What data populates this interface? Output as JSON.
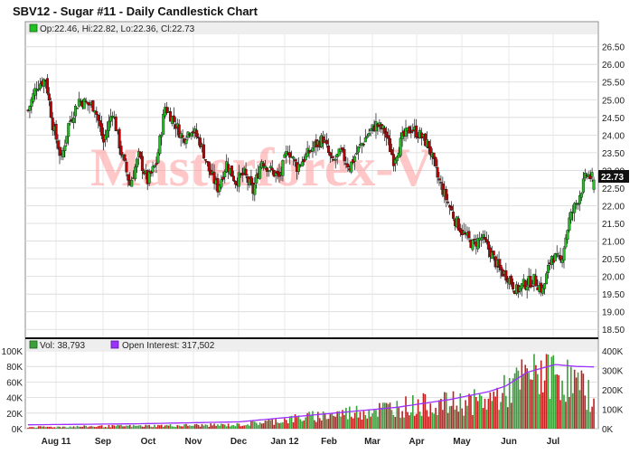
{
  "title": "SBV12 - Sugar #11 - Daily Candlestick Chart",
  "watermark": "Masterforex-V",
  "price_panel": {
    "ohlc_legend": "Op:22.46, Hi:22.82, Lo:22.36, Cl:22.73",
    "last_price_label": "22.73",
    "up_color": "#22c022",
    "down_color": "#c00000"
  },
  "volume_panel": {
    "vol_legend": "Vol: 38,793",
    "oi_legend": "Open Interest: 317,502",
    "vol_up_color": "#3aa03a",
    "vol_down_color": "#c02020",
    "oi_color": "#9b30ff"
  },
  "chart_data": [
    {
      "type": "candlestick",
      "title": "SBV12 - Sugar #11 - Daily Candlestick Chart",
      "ylim": [
        18.25,
        26.85
      ],
      "y_ticks": [
        "26.50",
        "26.00",
        "25.50",
        "25.00",
        "24.50",
        "24.00",
        "23.50",
        "23.00",
        "22.50",
        "22.00",
        "21.50",
        "21.00",
        "20.50",
        "20.00",
        "19.50",
        "19.00",
        "18.50"
      ],
      "x_ticks": [
        "Aug 11",
        "Sep",
        "Oct",
        "Nov",
        "Dec",
        "Jan 12",
        "Feb",
        "Mar",
        "Apr",
        "May",
        "Jun",
        "Jul"
      ],
      "grid": true,
      "approx_close_path": [
        [
          0,
          24.7
        ],
        [
          5,
          25.4
        ],
        [
          10,
          25.6
        ],
        [
          14,
          24.3
        ],
        [
          19,
          23.3
        ],
        [
          23,
          24.3
        ],
        [
          29,
          25.0
        ],
        [
          33,
          24.9
        ],
        [
          38,
          24.8
        ],
        [
          43,
          23.8
        ],
        [
          48,
          24.7
        ],
        [
          53,
          23.5
        ],
        [
          58,
          22.6
        ],
        [
          63,
          23.4
        ],
        [
          68,
          22.7
        ],
        [
          73,
          23.2
        ],
        [
          78,
          24.8
        ],
        [
          83,
          24.4
        ],
        [
          88,
          23.9
        ],
        [
          93,
          24.2
        ],
        [
          98,
          23.8
        ],
        [
          103,
          23.0
        ],
        [
          108,
          22.5
        ],
        [
          113,
          23.2
        ],
        [
          118,
          22.7
        ],
        [
          123,
          22.9
        ],
        [
          128,
          22.4
        ],
        [
          133,
          23.3
        ],
        [
          138,
          23.0
        ],
        [
          143,
          22.8
        ],
        [
          148,
          23.6
        ],
        [
          153,
          23.1
        ],
        [
          158,
          23.4
        ],
        [
          163,
          23.7
        ],
        [
          168,
          23.9
        ],
        [
          173,
          23.2
        ],
        [
          178,
          23.5
        ],
        [
          183,
          23.1
        ],
        [
          188,
          23.6
        ],
        [
          193,
          24.0
        ],
        [
          198,
          24.3
        ],
        [
          203,
          24.1
        ],
        [
          208,
          23.3
        ],
        [
          213,
          23.9
        ],
        [
          218,
          24.2
        ],
        [
          223,
          24.0
        ],
        [
          228,
          23.7
        ],
        [
          233,
          22.8
        ],
        [
          238,
          22.2
        ],
        [
          243,
          21.6
        ],
        [
          248,
          21.2
        ],
        [
          253,
          20.9
        ],
        [
          258,
          21.1
        ],
        [
          263,
          20.7
        ],
        [
          268,
          20.2
        ],
        [
          273,
          20.0
        ],
        [
          278,
          19.6
        ],
        [
          283,
          19.8
        ],
        [
          288,
          19.9
        ],
        [
          293,
          19.6
        ],
        [
          298,
          20.6
        ],
        [
          303,
          20.4
        ],
        [
          308,
          21.6
        ],
        [
          313,
          22.2
        ],
        [
          318,
          22.9
        ],
        [
          322,
          22.73
        ]
      ],
      "last": {
        "open": 22.46,
        "high": 22.82,
        "low": 22.36,
        "close": 22.73
      }
    },
    {
      "type": "bar",
      "title": "Volume / Open Interest",
      "ylim_left": [
        0,
        100000
      ],
      "y_ticks_left": [
        "0K",
        "20K",
        "40K",
        "60K",
        "80K",
        "100K"
      ],
      "ylim_right": [
        0,
        400000
      ],
      "y_ticks_right": [
        "0K",
        "100K",
        "200K",
        "300K",
        "400K"
      ],
      "x_ticks": [
        "Aug 11",
        "Sep",
        "Oct",
        "Nov",
        "Dec",
        "Jan 12",
        "Feb",
        "Mar",
        "Apr",
        "May",
        "Jun",
        "Jul"
      ],
      "series": [
        {
          "name": "Vol",
          "last": 38793
        },
        {
          "name": "Open Interest",
          "last": 317502
        }
      ],
      "approx_volume_path": [
        [
          0,
          2000
        ],
        [
          40,
          3000
        ],
        [
          80,
          4000
        ],
        [
          120,
          5000
        ],
        [
          140,
          10000
        ],
        [
          160,
          15000
        ],
        [
          180,
          20000
        ],
        [
          200,
          25000
        ],
        [
          220,
          30000
        ],
        [
          240,
          32000
        ],
        [
          260,
          35000
        ],
        [
          270,
          45000
        ],
        [
          280,
          60000
        ],
        [
          290,
          75000
        ],
        [
          300,
          70000
        ],
        [
          310,
          60000
        ],
        [
          322,
          38793
        ]
      ],
      "approx_oi_path": [
        [
          0,
          20000
        ],
        [
          60,
          25000
        ],
        [
          120,
          35000
        ],
        [
          150,
          60000
        ],
        [
          180,
          85000
        ],
        [
          210,
          110000
        ],
        [
          240,
          150000
        ],
        [
          262,
          190000
        ],
        [
          272,
          220000
        ],
        [
          284,
          290000
        ],
        [
          300,
          330000
        ],
        [
          312,
          320000
        ],
        [
          322,
          317502
        ]
      ]
    }
  ]
}
